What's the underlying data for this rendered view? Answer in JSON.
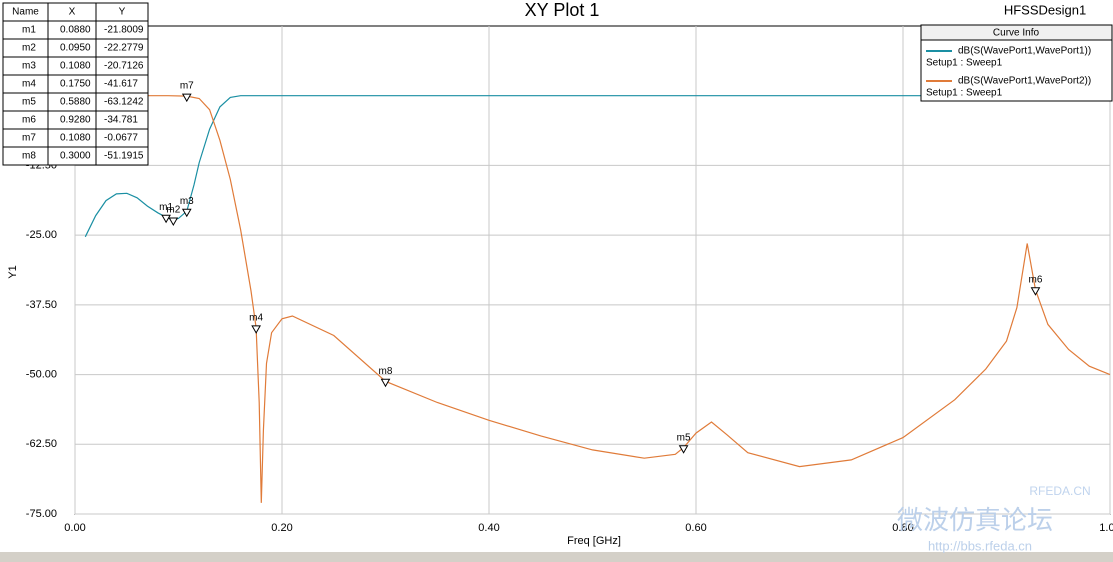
{
  "chart_data": {
    "type": "line",
    "title": "XY Plot 1",
    "design_name": "HFSSDesign1",
    "xlabel": "Freq [GHz]",
    "ylabel": "Y1",
    "xlim": [
      0,
      1
    ],
    "ylim": [
      -75,
      12.5
    ],
    "xticks": [
      {
        "value": 0,
        "label": "0.00"
      },
      {
        "value": 0.2,
        "label": "0.20"
      },
      {
        "value": 0.4,
        "label": "0.40"
      },
      {
        "value": 0.6,
        "label": "0.60"
      },
      {
        "value": 0.8,
        "label": "0.80"
      },
      {
        "value": 1,
        "label": "1.00"
      }
    ],
    "yticks": [
      {
        "value": -12.5,
        "label": "-12.50"
      },
      {
        "value": -25,
        "label": "-25.00"
      },
      {
        "value": -37.5,
        "label": "-37.50"
      },
      {
        "value": -50,
        "label": "-50.00"
      },
      {
        "value": -62.5,
        "label": "-62.50"
      },
      {
        "value": -75,
        "label": "-75.00"
      }
    ],
    "grid": true,
    "legend_title": "Curve Info",
    "legend_position": "upper right",
    "series": [
      {
        "name": "dB(S(WavePort1,WavePort1))",
        "setup": "Setup1 : Sweep1",
        "color": "#1a8fa3",
        "x": [
          0.01,
          0.02,
          0.03,
          0.04,
          0.05,
          0.06,
          0.07,
          0.08,
          0.088,
          0.095,
          0.1,
          0.108,
          0.115,
          0.12,
          0.13,
          0.14,
          0.15,
          0.16,
          0.2,
          0.4,
          0.6,
          0.8,
          1.0
        ],
        "values": [
          -25.3,
          -21.5,
          -18.8,
          -17.6,
          -17.5,
          -18.3,
          -19.8,
          -21.0,
          -21.8,
          -22.28,
          -22.0,
          -20.7,
          -16,
          -12,
          -6,
          -2,
          -0.3,
          0,
          0,
          0,
          0,
          0,
          0
        ]
      },
      {
        "name": "dB(S(WavePort1,WavePort2))",
        "setup": "Setup1 : Sweep1",
        "color": "#e07b39",
        "x": [
          0.01,
          0.05,
          0.09,
          0.108,
          0.12,
          0.13,
          0.14,
          0.15,
          0.16,
          0.17,
          0.175,
          0.178,
          0.18,
          0.182,
          0.185,
          0.19,
          0.2,
          0.21,
          0.25,
          0.3,
          0.35,
          0.4,
          0.45,
          0.5,
          0.55,
          0.58,
          0.588,
          0.6,
          0.615,
          0.63,
          0.65,
          0.7,
          0.75,
          0.8,
          0.85,
          0.88,
          0.9,
          0.91,
          0.92,
          0.928,
          0.94,
          0.96,
          0.98,
          1.0
        ],
        "values": [
          0,
          0,
          0,
          -0.0677,
          -0.5,
          -2.5,
          -8,
          -15,
          -24,
          -35,
          -41.6,
          -55,
          -73,
          -60,
          -48,
          -42.5,
          -40,
          -39.5,
          -43,
          -51.2,
          -55,
          -58.2,
          -61,
          -63.5,
          -65,
          -64.3,
          -63.1,
          -60.5,
          -58.5,
          -60.8,
          -64,
          -66.5,
          -65.3,
          -61.3,
          -54.5,
          -49,
          -44,
          -38,
          -26.5,
          -34.8,
          -41,
          -45.5,
          -48.5,
          -50
        ]
      }
    ],
    "markers": {
      "columns": [
        "Name",
        "X",
        "Y"
      ],
      "names": [
        "m1",
        "m2",
        "m3",
        "m4",
        "m5",
        "m6",
        "m7",
        "m8"
      ],
      "x": [
        0.088,
        0.095,
        0.108,
        0.175,
        0.588,
        0.928,
        0.108,
        0.3
      ],
      "x_labels": [
        "0.0880",
        "0.0950",
        "0.1080",
        "0.1750",
        "0.5880",
        "0.9280",
        "0.1080",
        "0.3000"
      ],
      "y": [
        -21.8009,
        -22.2779,
        -20.7126,
        -41.617,
        -63.1242,
        -34.781,
        -0.0677,
        -51.1915
      ]
    },
    "watermark": [
      "RFEDA.CN",
      "微波仿真论坛",
      "http://bbs.rfeda.cn"
    ]
  }
}
